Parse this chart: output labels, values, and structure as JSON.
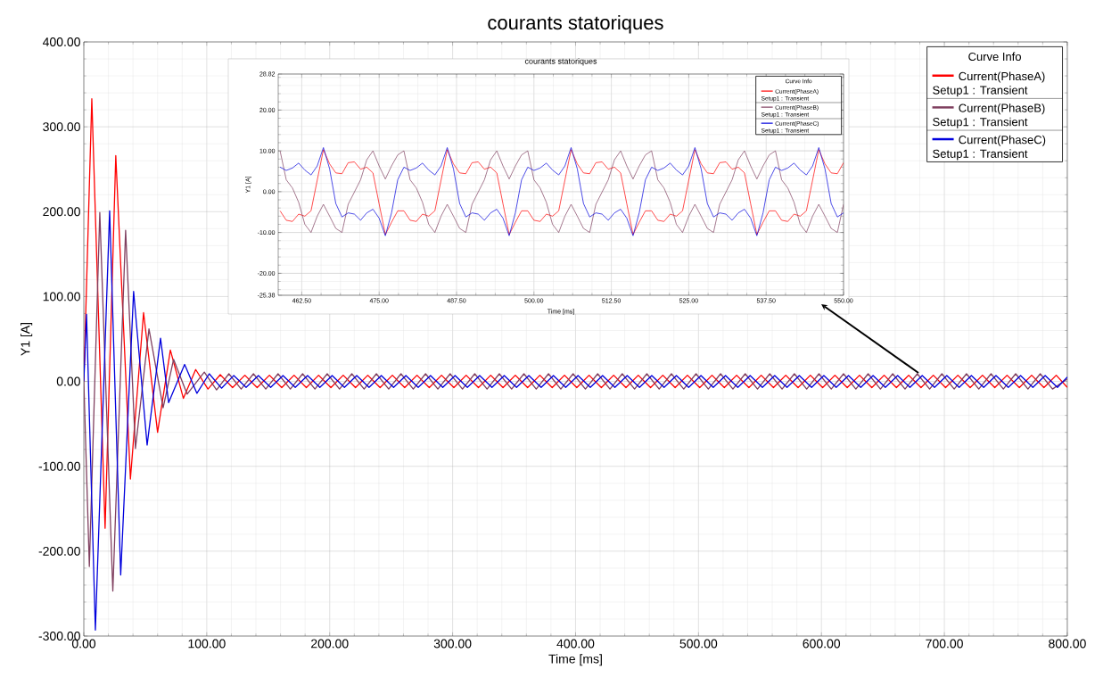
{
  "chart_data": [
    {
      "type": "line",
      "title": "courants statoriques",
      "xlabel": "Time [ms]",
      "ylabel": "Y1 [A]",
      "legend_title": "Curve Info",
      "legend": "top right",
      "grid": true,
      "xlim": [
        0,
        800
      ],
      "ylim": [
        -300,
        400
      ],
      "xticks": [
        {
          "value": 0,
          "label": "0.00"
        },
        {
          "value": 100,
          "label": "100.00"
        },
        {
          "value": 200,
          "label": "200.00"
        },
        {
          "value": 300,
          "label": "300.00"
        },
        {
          "value": 400,
          "label": "400.00"
        },
        {
          "value": 500,
          "label": "500.00"
        },
        {
          "value": 600,
          "label": "600.00"
        },
        {
          "value": 700,
          "label": "700.00"
        },
        {
          "value": 800,
          "label": "800.00"
        }
      ],
      "yticks": [
        {
          "value": -300,
          "label": "-300.00"
        },
        {
          "value": -200,
          "label": "-200.00"
        },
        {
          "value": -100,
          "label": "-100.00"
        },
        {
          "value": 0,
          "label": "0.00"
        },
        {
          "value": 100,
          "label": "100.00"
        },
        {
          "value": 200,
          "label": "200.00"
        },
        {
          "value": 300,
          "label": "300.00"
        },
        {
          "value": 400,
          "label": "400.00"
        }
      ],
      "series": [
        {
          "name": "Current(PhaseA) Setup1 : Transient",
          "color": "#ff0000",
          "x": [
            0,
            6.5,
            17.3,
            26,
            37.9,
            48.6,
            60,
            70.4,
            81,
            91,
            101,
            111,
            121,
            131,
            141,
            151,
            161,
            171,
            181,
            191,
            201,
            211,
            221,
            231,
            241,
            251,
            261,
            271,
            281,
            291,
            301,
            311,
            321,
            331,
            341,
            351,
            361,
            371,
            381,
            391,
            401,
            411,
            421,
            431,
            441,
            451,
            461,
            471,
            481,
            491,
            501,
            511,
            521,
            531,
            541,
            551,
            561,
            571,
            581,
            591,
            601,
            611,
            621,
            631,
            641,
            651,
            661,
            671,
            681,
            691,
            701,
            711,
            721,
            731,
            741,
            751,
            761,
            771,
            781,
            791,
            800
          ],
          "values": [
            0,
            333,
            -173,
            266,
            -115,
            81,
            -60,
            37,
            -20,
            14,
            -9,
            8,
            -7.3,
            7.3,
            -7.3,
            7.3,
            -7.3,
            7.3,
            -7.3,
            7.3,
            -7.3,
            7.3,
            -7.3,
            7.3,
            -7.3,
            7.3,
            -7.3,
            7.3,
            -7.3,
            7.3,
            -7.3,
            7.3,
            -7.3,
            7.3,
            -7.3,
            7.3,
            -7.3,
            7.3,
            -7.3,
            7.3,
            -7.3,
            7.3,
            -7.3,
            7.3,
            -7.3,
            7.3,
            -7.3,
            7.3,
            -7.3,
            7.3,
            -7.3,
            7.3,
            -7.3,
            7.3,
            -7.3,
            7.3,
            -7.3,
            7.3,
            -7.3,
            7.3,
            -7.3,
            7.3,
            -7.3,
            7.3,
            -7.3,
            7.3,
            -7.3,
            7.3,
            -7.3,
            7.3,
            -7.3,
            7.3,
            -7.3,
            7.3,
            -7.3,
            7.3,
            -7.3,
            7.3,
            -7.3,
            7.3,
            -7.0
          ]
        },
        {
          "name": "Current(PhaseB) Setup1 : Transient",
          "color": "#804060",
          "x": [
            0,
            4.5,
            13,
            23.6,
            34,
            42,
            53,
            64.5,
            73,
            84,
            98,
            108,
            118,
            128,
            138,
            148,
            158,
            168,
            178,
            188,
            198,
            208,
            218,
            228,
            238,
            248,
            258,
            268,
            278,
            288,
            298,
            308,
            318,
            328,
            338,
            348,
            358,
            368,
            378,
            388,
            398,
            408,
            418,
            428,
            438,
            448,
            458,
            468,
            478,
            488,
            498,
            508,
            518,
            528,
            538,
            548,
            558,
            568,
            578,
            588,
            598,
            608,
            618,
            628,
            638,
            648,
            658,
            668,
            678,
            688,
            698,
            708,
            718,
            728,
            738,
            748,
            758,
            768,
            778,
            788,
            800
          ],
          "values": [
            0,
            -218,
            199,
            -247,
            178,
            -79,
            62,
            -31,
            26,
            -15,
            11,
            -10,
            9.0,
            -9.0,
            9.0,
            -9.0,
            9.0,
            -9.0,
            9.0,
            -9.0,
            9.0,
            -9.0,
            9.0,
            -9.0,
            9.0,
            -9.0,
            9.0,
            -9.0,
            9.0,
            -9.0,
            9.0,
            -9.0,
            9.0,
            -9.0,
            9.0,
            -9.0,
            9.0,
            -9.0,
            9.0,
            -9.0,
            9.0,
            -9.0,
            9.0,
            -9.0,
            9.0,
            -9.0,
            9.0,
            -9.0,
            9.0,
            -9.0,
            9.0,
            -9.0,
            9.0,
            -9.0,
            9.0,
            -9.0,
            9.0,
            -9.0,
            9.0,
            -9.0,
            9.0,
            -9.0,
            9.0,
            -9.0,
            9.0,
            -9.0,
            9.0,
            -9.0,
            9.0,
            -9.0,
            9.0,
            -9.0,
            9.0,
            -9.0,
            9.0,
            -9.0,
            9.0,
            -9.0,
            9.0,
            -9.0,
            2.9
          ]
        },
        {
          "name": "Current(PhaseC) Setup1 : Transient",
          "color": "#0000dd",
          "x": [
            0,
            2.2,
            9.4,
            21,
            30,
            40.5,
            51.5,
            62.4,
            69,
            82,
            92,
            102,
            112,
            122,
            132,
            142,
            152,
            162,
            172,
            182,
            192,
            202,
            212,
            222,
            232,
            242,
            252,
            262,
            272,
            282,
            292,
            302,
            312,
            322,
            332,
            342,
            352,
            362,
            372,
            382,
            392,
            402,
            412,
            422,
            432,
            442,
            452,
            462,
            472,
            482,
            492,
            502,
            512,
            522,
            532,
            542,
            552,
            562,
            572,
            582,
            592,
            602,
            612,
            622,
            632,
            642,
            652,
            662,
            672,
            682,
            692,
            702,
            712,
            722,
            732,
            742,
            752,
            762,
            772,
            782,
            792,
            800
          ],
          "values": [
            0,
            79,
            -293,
            201,
            -228,
            106,
            -75,
            51,
            -25,
            20,
            -14,
            9,
            -8,
            7.0,
            -7.0,
            7.0,
            -7.0,
            7.0,
            -7.0,
            7.0,
            -7.0,
            7.0,
            -7.0,
            7.0,
            -7.0,
            7.0,
            -7.0,
            7.0,
            -7.0,
            7.0,
            -7.0,
            7.0,
            -7.0,
            7.0,
            -7.0,
            7.0,
            -7.0,
            7.0,
            -7.0,
            7.0,
            -7.0,
            7.0,
            -7.0,
            7.0,
            -7.0,
            7.0,
            -7.0,
            7.0,
            -7.0,
            7.0,
            -7.0,
            7.0,
            -7.0,
            7.0,
            -7.0,
            7.0,
            -7.0,
            7.0,
            -7.0,
            7.0,
            -7.0,
            7.0,
            -7.0,
            7.0,
            -7.0,
            7.0,
            -7.0,
            7.0,
            -7.0,
            7.0,
            -7.0,
            7.0,
            -7.0,
            7.0,
            -7.0,
            7.0,
            -7.0,
            7.0,
            -7.0,
            7.0,
            -7.0,
            5.2
          ]
        }
      ]
    },
    {
      "type": "line",
      "title": "courants statoriques",
      "xlabel": "Time [ms]",
      "ylabel": "Y1 [A]",
      "legend_title": "Curve Info",
      "legend": "top right",
      "grid": true,
      "xlim": [
        458.7,
        550
      ],
      "ylim": [
        -25.38,
        28.82
      ],
      "xticks": [
        {
          "value": 462.5,
          "label": "462.50"
        },
        {
          "value": 475,
          "label": "475.00"
        },
        {
          "value": 487.5,
          "label": "487.50"
        },
        {
          "value": 500,
          "label": "500.00"
        },
        {
          "value": 512.5,
          "label": "512.50"
        },
        {
          "value": 525,
          "label": "525.00"
        },
        {
          "value": 537.5,
          "label": "537.50"
        },
        {
          "value": 550,
          "label": "550.00"
        }
      ],
      "yticks": [
        -25.38,
        {
          "value": -20,
          "label": "-20.00"
        },
        {
          "value": -10,
          "label": "-10.00"
        },
        {
          "value": 0,
          "label": "0.00"
        },
        {
          "value": 10,
          "label": "10.00"
        },
        {
          "value": 20,
          "label": "20.00"
        },
        28.82
      ],
      "x": [
        459,
        460,
        461,
        462,
        463,
        464,
        465,
        466,
        467,
        468,
        469,
        470,
        471,
        472,
        473,
        474,
        475,
        476,
        477,
        478,
        479,
        480,
        481,
        482,
        483,
        484,
        485,
        486,
        487,
        488,
        489,
        490,
        491,
        492,
        493,
        494,
        495,
        496,
        497,
        498,
        499,
        500,
        501,
        502,
        503,
        504,
        505,
        506,
        507,
        508,
        509,
        510,
        511,
        512,
        513,
        514,
        515,
        516,
        517,
        518,
        519,
        520,
        521,
        522,
        523,
        524,
        525,
        526,
        527,
        528,
        529,
        530,
        531,
        532,
        533,
        534,
        535,
        536,
        537,
        538,
        539,
        540,
        541,
        542,
        543,
        544,
        545,
        546,
        547,
        548,
        549,
        550
      ],
      "series": [
        {
          "name": "Current(PhaseA) Setup1 : Transient",
          "color": "#ff0000",
          "values": [
            -4.7,
            -7.0,
            -7.3,
            -5.5,
            -6.0,
            -4.7,
            2.8,
            10.3,
            6.8,
            4.6,
            4.4,
            7.1,
            7.3,
            5.5,
            6.0,
            4.6,
            -3.0,
            -10.5,
            -7.5,
            -4.7,
            -4.7,
            -7.0,
            -7.3,
            -5.5,
            -6.0,
            -4.7,
            2.8,
            10.3,
            6.8,
            4.6,
            4.4,
            7.1,
            7.3,
            5.5,
            6.0,
            4.6,
            -3.0,
            -10.5,
            -7.5,
            -4.7,
            -4.7,
            -7.0,
            -7.3,
            -5.5,
            -6.0,
            -4.7,
            2.8,
            10.3,
            6.8,
            4.6,
            4.4,
            7.1,
            7.3,
            5.5,
            6.0,
            4.6,
            -3.0,
            -10.5,
            -7.5,
            -4.7,
            -4.7,
            -7.0,
            -7.3,
            -5.5,
            -6.0,
            -4.7,
            2.8,
            10.3,
            6.8,
            4.6,
            4.4,
            7.1,
            7.3,
            5.5,
            6.0,
            4.6,
            -3.0,
            -10.5,
            -7.5,
            -4.7,
            -4.7,
            -7.0,
            -7.3,
            -5.5,
            -6.0,
            -4.7,
            2.8,
            10.3,
            6.8,
            4.6,
            4.4,
            7.1
          ]
        },
        {
          "name": "Current(PhaseB) Setup1 : Transient",
          "color": "#804060",
          "values": [
            10.0,
            2.9,
            0.9,
            -2.6,
            -8.0,
            -10.0,
            -6.0,
            -3.1,
            -6.0,
            -9.0,
            -10.0,
            -3.1,
            -0.1,
            2.9,
            7.8,
            10.0,
            6.3,
            3.1,
            6.3,
            9.0,
            10.0,
            2.9,
            0.9,
            -2.6,
            -8.0,
            -10.0,
            -6.0,
            -3.1,
            -6.0,
            -9.0,
            -10.0,
            -3.1,
            -0.1,
            2.9,
            7.8,
            10.0,
            6.3,
            3.1,
            6.3,
            9.0,
            10.0,
            2.9,
            0.9,
            -2.6,
            -8.0,
            -10.0,
            -6.0,
            -3.1,
            -6.0,
            -9.0,
            -10.0,
            -3.1,
            -0.1,
            2.9,
            7.8,
            10.0,
            6.3,
            3.1,
            6.3,
            9.0,
            10.0,
            2.9,
            0.9,
            -2.6,
            -8.0,
            -10.0,
            -6.0,
            -3.1,
            -6.0,
            -9.0,
            -10.0,
            -3.1,
            -0.1,
            2.9,
            7.8,
            10.0,
            6.3,
            3.1,
            6.3,
            9.0,
            10.0,
            2.9,
            0.9,
            -2.6,
            -8.0,
            -10.0,
            -6.0,
            -3.1,
            -6.0,
            -9.0,
            -10.0,
            -3.1
          ]
        },
        {
          "name": "Current(PhaseC) Setup1 : Transient",
          "color": "#0000dd",
          "values": [
            6.0,
            5.2,
            5.8,
            7.0,
            5.3,
            4.1,
            6.3,
            10.8,
            5.6,
            -2.9,
            -6.2,
            -5.2,
            -5.5,
            -7.0,
            -5.2,
            -4.3,
            -6.5,
            -10.8,
            -5.2,
            2.9,
            6.0,
            5.2,
            5.8,
            7.0,
            5.3,
            4.1,
            6.3,
            10.8,
            5.6,
            -2.9,
            -6.2,
            -5.2,
            -5.5,
            -7.0,
            -5.2,
            -4.3,
            -6.5,
            -10.8,
            -5.2,
            2.9,
            6.0,
            5.2,
            5.8,
            7.0,
            5.3,
            4.1,
            6.3,
            10.8,
            5.6,
            -2.9,
            -6.2,
            -5.2,
            -5.5,
            -7.0,
            -5.2,
            -4.3,
            -6.5,
            -10.8,
            -5.2,
            2.9,
            6.0,
            5.2,
            5.8,
            7.0,
            5.3,
            4.1,
            6.3,
            10.8,
            5.6,
            -2.9,
            -6.2,
            -5.2,
            -5.5,
            -7.0,
            -5.2,
            -4.3,
            -6.5,
            -10.8,
            -5.2,
            2.9,
            6.0,
            5.2,
            5.8,
            7.0,
            5.3,
            4.1,
            6.3,
            10.8,
            5.6,
            -2.9,
            -6.2,
            -5.2
          ]
        }
      ]
    }
  ]
}
